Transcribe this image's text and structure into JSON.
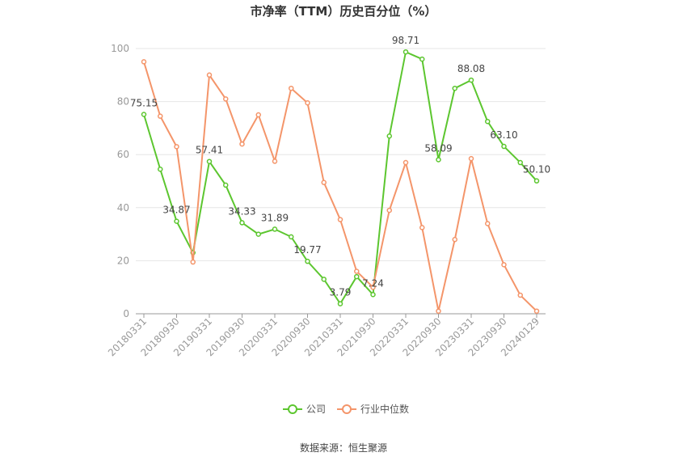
{
  "chart_data": {
    "type": "line",
    "title": "市净率（TTM）历史百分位（%）",
    "categories": [
      "20180331",
      null,
      "20180930",
      null,
      "20190331",
      null,
      "20190930",
      null,
      "20200331",
      null,
      "20200930",
      null,
      "20210331",
      null,
      "20210930",
      null,
      "20220331",
      null,
      "20220930",
      null,
      "20230331",
      null,
      "20230930",
      null,
      "20240129"
    ],
    "series": [
      {
        "name": "公司",
        "color": "#5cc62f",
        "values": [
          75.15,
          54.5,
          34.87,
          23,
          57.41,
          48.5,
          34.33,
          30,
          31.89,
          29,
          19.77,
          13,
          3.79,
          14,
          7.24,
          67,
          98.71,
          96,
          58.09,
          85,
          88.08,
          72.5,
          63.1,
          57,
          50.1
        ],
        "value_labels": [
          "75.15",
          null,
          "34.87",
          null,
          "57.41",
          null,
          "34.33",
          null,
          "31.89",
          null,
          "19.77",
          null,
          "3.79",
          null,
          "7.24",
          null,
          "98.71",
          null,
          "58.09",
          null,
          "88.08",
          null,
          "63.10",
          null,
          "50.10"
        ]
      },
      {
        "name": "行业中位数",
        "color": "#f4956a",
        "values": [
          95,
          74.5,
          63,
          19.5,
          90,
          81,
          64,
          75,
          57.5,
          85,
          79.5,
          49.5,
          35.5,
          16,
          10,
          39,
          57,
          32.5,
          1,
          28,
          58.5,
          34,
          18.5,
          7,
          1
        ]
      }
    ],
    "ylim": [
      0,
      100
    ],
    "yticks": [
      0,
      20,
      40,
      60,
      80,
      100
    ],
    "grid": true,
    "source": "数据来源：恒生聚源"
  }
}
